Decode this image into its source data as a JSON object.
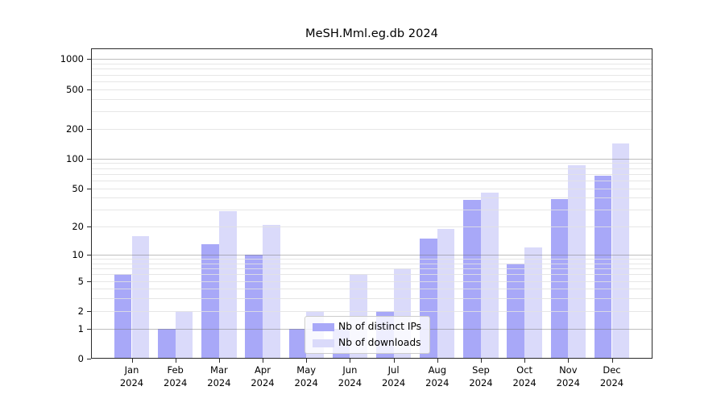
{
  "chart_data": {
    "type": "bar",
    "title": "MeSH.Mml.eg.db 2024",
    "categories": [
      "Jan",
      "Feb",
      "Mar",
      "Apr",
      "May",
      "Jun",
      "Jul",
      "Aug",
      "Sep",
      "Oct",
      "Nov",
      "Dec"
    ],
    "category_year": "2024",
    "series": [
      {
        "name": "Nb of distinct IPs",
        "color": "#a8a8f8",
        "values": [
          6,
          1,
          13,
          10,
          1,
          1,
          2,
          15,
          38,
          8,
          39,
          67
        ]
      },
      {
        "name": "Nb of downloads",
        "color": "#dadafa",
        "values": [
          16,
          2,
          29,
          21,
          2,
          6,
          7,
          19,
          45,
          12,
          85,
          141
        ]
      }
    ],
    "yscale": "log10(1+value)",
    "ylim": [
      0,
      1000
    ],
    "yticks": [
      0,
      1,
      2,
      5,
      10,
      20,
      50,
      100,
      200,
      500,
      1000
    ],
    "major_grid_values": [
      1,
      10,
      100,
      1000
    ],
    "minor_grid_values": [
      2,
      3,
      4,
      5,
      6,
      7,
      8,
      9,
      20,
      30,
      40,
      50,
      60,
      70,
      80,
      90,
      200,
      300,
      400,
      500,
      600,
      700,
      800,
      900
    ],
    "grid": "horizontal",
    "legend_position": "lower center"
  },
  "colors": {
    "background": "#ffffff",
    "axis": "#2b2b2b",
    "distinct_ips_bar": "#a8a8f8",
    "downloads_bar": "#dadafa",
    "major_gridline": "#bebebe",
    "minor_gridline": "#e6e6e6",
    "legend_border": "#cccccc"
  }
}
